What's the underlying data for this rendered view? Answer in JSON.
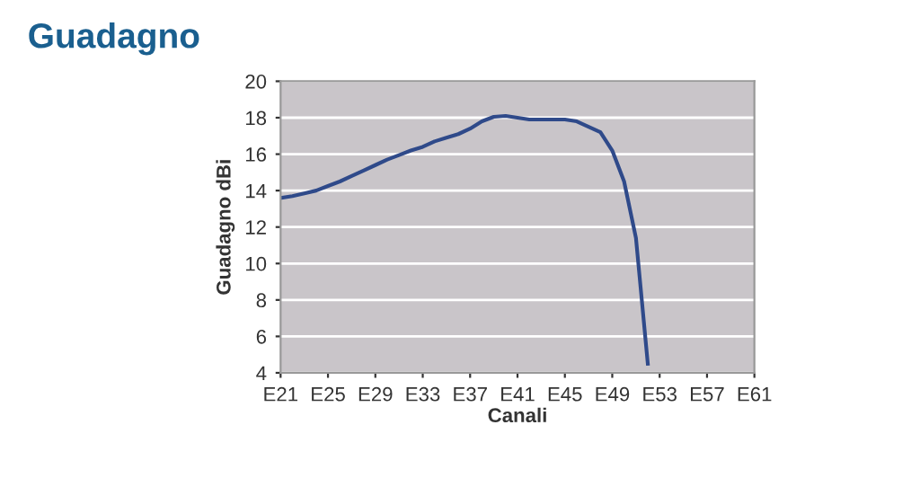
{
  "chart_data": {
    "type": "line",
    "title": "Guadagno",
    "xlabel": "Canali",
    "ylabel": "Guadagno dBi",
    "categories": [
      "E21",
      null,
      null,
      null,
      "E25",
      null,
      null,
      null,
      "E29",
      null,
      null,
      null,
      "E33",
      null,
      null,
      null,
      "E37",
      null,
      null,
      null,
      "E41",
      null,
      null,
      null,
      "E45",
      null,
      null,
      null,
      "E49",
      null,
      null,
      null,
      "E53",
      null,
      null,
      null,
      "E57",
      null,
      null,
      null,
      "E61"
    ],
    "series": [
      {
        "color": "#2f4a8a",
        "values": [
          13.6,
          13.7,
          13.85,
          14.0,
          14.25,
          14.5,
          14.8,
          15.1,
          15.4,
          15.7,
          15.95,
          16.2,
          16.4,
          16.7,
          16.9,
          17.1,
          17.4,
          17.8,
          18.05,
          18.1,
          18.0,
          17.9,
          17.9,
          17.9,
          17.9,
          17.8,
          17.5,
          17.2,
          16.2,
          14.5,
          11.4,
          4.5,
          null,
          null,
          null,
          null,
          null,
          null,
          null,
          null,
          null
        ]
      }
    ],
    "ylim": [
      4,
      20
    ],
    "yticks": [
      4,
      6,
      8,
      10,
      12,
      14,
      16,
      18,
      20
    ],
    "grid": "y",
    "marker": "none",
    "line_style": "solid",
    "legend": false
  }
}
